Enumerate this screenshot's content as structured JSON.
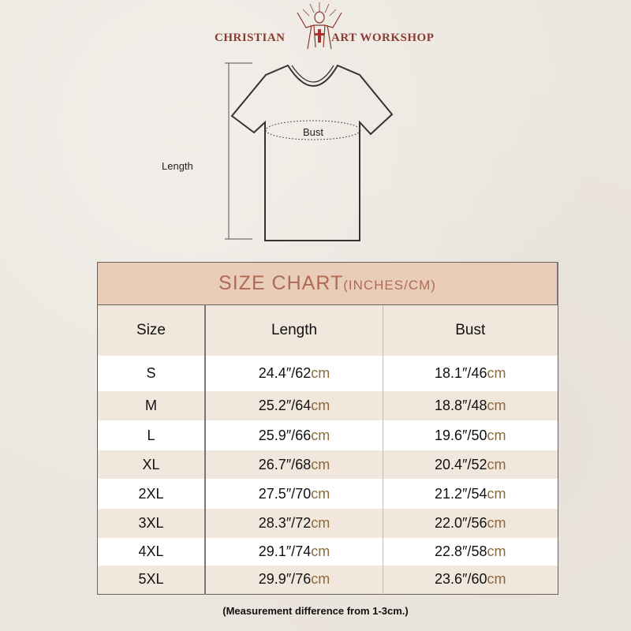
{
  "brand": {
    "left": "CHRISTIAN",
    "right": "ART WORKSHOP"
  },
  "diagram": {
    "length_label": "Length",
    "bust_label": "Bust"
  },
  "chart": {
    "title": "SIZE CHART",
    "title_units": "(INCHES/CM)",
    "headers": [
      "Size",
      "Length",
      "Bust"
    ],
    "unit": "cm",
    "rows": [
      {
        "size": "S",
        "length": "24.4″/62",
        "bust": "18.1″/46"
      },
      {
        "size": "M",
        "length": "25.2″/64",
        "bust": "18.8″/48"
      },
      {
        "size": "L",
        "length": "25.9″/66",
        "bust": "19.6″/50"
      },
      {
        "size": "XL",
        "length": "26.7″/68",
        "bust": "20.4″/52"
      },
      {
        "size": "2XL",
        "length": "27.5″/70",
        "bust": "21.2″/54"
      },
      {
        "size": "3XL",
        "length": "28.3″/72",
        "bust": "22.0″/56"
      },
      {
        "size": "4XL",
        "length": "29.1″/74",
        "bust": "22.8″/58"
      },
      {
        "size": "5XL",
        "length": "29.9″/76",
        "bust": "23.6″/60"
      }
    ]
  },
  "note": "(Measurement difference from 1-3cm.)"
}
